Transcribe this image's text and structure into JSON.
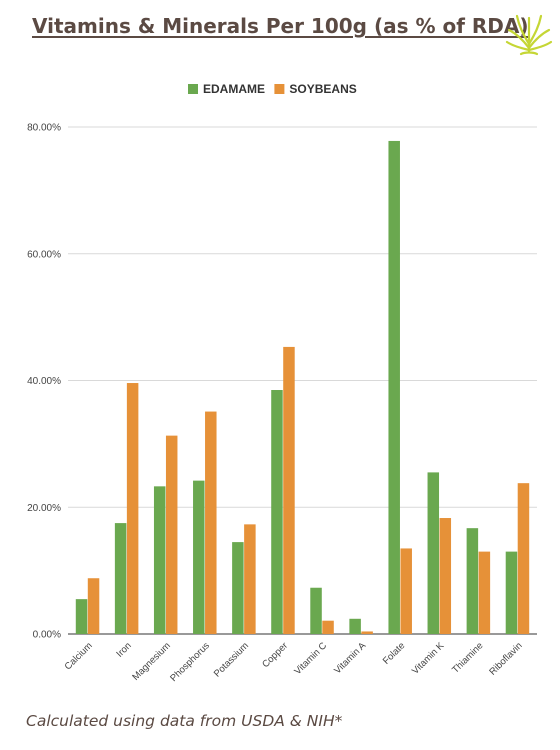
{
  "header": {
    "title": "Vitamins & Minerals Per 100g (as % of RDA)"
  },
  "footer": {
    "note": "Calculated using data from USDA & NIH*"
  },
  "logo_icon": "leaf-sprout-icon",
  "colors": {
    "title_text": "#5b4a43",
    "edamame": "#6aa84f",
    "soybeans": "#e69138",
    "logo": "#c5d635",
    "grid": "#d9d9d9"
  },
  "chart_data": {
    "type": "bar",
    "title": "",
    "xlabel": "",
    "ylabel": "",
    "ylim": [
      0,
      80
    ],
    "y_tick_values": [
      0,
      20,
      40,
      60,
      80
    ],
    "y_tick_labels": [
      "0.00%",
      "20.00%",
      "40.00%",
      "60.00%",
      "80.00%"
    ],
    "grid": true,
    "legend_position": "top-center",
    "categories": [
      "Calcium",
      "Iron",
      "Magnesium",
      "Phosphorus",
      "Potassium",
      "Copper",
      "Vitamin C",
      "Vitamin A",
      "Folate",
      "Vitamin K",
      "Thiamine",
      "Riboflavin"
    ],
    "series": [
      {
        "name": "EDAMAME",
        "color": "#6aa84f",
        "values": [
          5.5,
          17.5,
          23.3,
          24.2,
          14.5,
          38.5,
          7.3,
          2.4,
          77.8,
          25.5,
          16.7,
          13.0
        ]
      },
      {
        "name": "SOYBEANS",
        "color": "#e69138",
        "values": [
          8.8,
          39.6,
          31.3,
          35.1,
          17.3,
          45.3,
          2.1,
          0.4,
          13.5,
          18.3,
          13.0,
          23.8
        ]
      }
    ]
  }
}
